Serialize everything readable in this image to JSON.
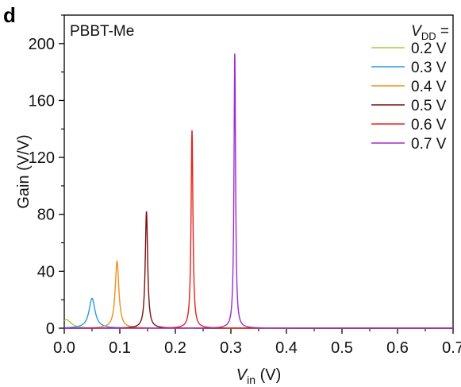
{
  "chart_data": {
    "type": "line",
    "panel_label": "d",
    "annotation": "PBBT-Me",
    "xlabel_main": "V",
    "xlabel_sub": "in",
    "xlabel_unit": " (V)",
    "ylabel": "Gain (V/V)",
    "xlim": [
      0.0,
      0.7
    ],
    "ylim": [
      0,
      220
    ],
    "x_ticks": [
      "0.0",
      "0.1",
      "0.2",
      "0.3",
      "0.4",
      "0.5",
      "0.6",
      "0.7"
    ],
    "y_ticks": [
      "0",
      "40",
      "80",
      "120",
      "160",
      "200"
    ],
    "legend": {
      "title_main": "V",
      "title_sub": "DD",
      "title_suffix": " =",
      "placement": "top-right"
    },
    "series": [
      {
        "name": "0.2 V",
        "color": "#9ad23c",
        "peak_x": 0.004,
        "peak_y": 6,
        "width": 0.01
      },
      {
        "name": "0.3 V",
        "color": "#2c9be0",
        "peak_x": 0.05,
        "peak_y": 21,
        "width": 0.0065
      },
      {
        "name": "0.4 V",
        "color": "#f0901c",
        "peak_x": 0.095,
        "peak_y": 47,
        "width": 0.004
      },
      {
        "name": "0.5 V",
        "color": "#7a1010",
        "peak_x": 0.148,
        "peak_y": 82,
        "width": 0.0026
      },
      {
        "name": "0.6 V",
        "color": "#e8201c",
        "peak_x": 0.23,
        "peak_y": 139,
        "width": 0.002
      },
      {
        "name": "0.7 V",
        "color": "#a02ccc",
        "peak_x": 0.307,
        "peak_y": 193,
        "width": 0.0017
      }
    ]
  }
}
